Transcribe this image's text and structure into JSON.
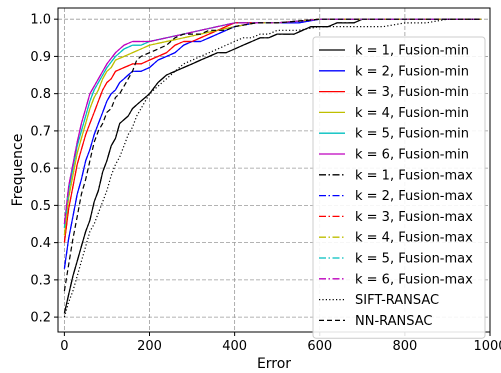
{
  "chart_data": {
    "type": "line",
    "title": "",
    "xlabel": "Error",
    "ylabel": "Frequence",
    "xlim": [
      -15,
      1000
    ],
    "ylim": [
      0.16,
      1.03
    ],
    "xticks": [
      0,
      200,
      400,
      600,
      800,
      1000
    ],
    "yticks": [
      0.2,
      0.3,
      0.4,
      0.5,
      0.6,
      0.7,
      0.8,
      0.9,
      1.0
    ],
    "xtick_labels": [
      "0",
      "200",
      "400",
      "600",
      "800",
      "1000"
    ],
    "ytick_labels": [
      "0.2",
      "0.3",
      "0.4",
      "0.5",
      "0.6",
      "0.7",
      "0.8",
      "0.9",
      "1.0"
    ],
    "grid": true,
    "grid_style": "dashed",
    "legend_position": "lower-right",
    "series": [
      {
        "name": "k = 1, Fusion-min",
        "color": "#000000",
        "dash": "solid",
        "x": [
          0,
          10,
          20,
          30,
          40,
          50,
          60,
          70,
          80,
          90,
          100,
          110,
          120,
          130,
          140,
          150,
          160,
          170,
          180,
          190,
          200,
          220,
          240,
          260,
          280,
          300,
          320,
          340,
          360,
          380,
          400,
          420,
          440,
          460,
          480,
          500,
          520,
          540,
          560,
          580,
          600,
          620,
          640,
          660,
          680,
          700,
          720,
          760,
          800,
          900,
          980
        ],
        "y": [
          0.21,
          0.26,
          0.31,
          0.35,
          0.39,
          0.43,
          0.46,
          0.51,
          0.54,
          0.59,
          0.62,
          0.66,
          0.68,
          0.72,
          0.73,
          0.74,
          0.76,
          0.77,
          0.78,
          0.79,
          0.8,
          0.83,
          0.85,
          0.86,
          0.87,
          0.88,
          0.89,
          0.9,
          0.91,
          0.91,
          0.92,
          0.93,
          0.94,
          0.95,
          0.95,
          0.96,
          0.96,
          0.96,
          0.97,
          0.98,
          0.98,
          0.98,
          0.99,
          0.99,
          0.99,
          1.0,
          1.0,
          1.0,
          1.0,
          1.0,
          1.0
        ]
      },
      {
        "name": "k = 2, Fusion-min",
        "color": "#0000ff",
        "dash": "solid",
        "x": [
          0,
          10,
          20,
          30,
          40,
          50,
          60,
          70,
          80,
          90,
          100,
          110,
          120,
          130,
          140,
          150,
          160,
          170,
          180,
          200,
          220,
          240,
          260,
          280,
          300,
          320,
          340,
          360,
          380,
          400,
          450,
          500,
          550,
          600,
          700,
          800,
          980
        ],
        "y": [
          0.33,
          0.41,
          0.47,
          0.53,
          0.57,
          0.62,
          0.65,
          0.69,
          0.72,
          0.75,
          0.78,
          0.8,
          0.81,
          0.83,
          0.84,
          0.85,
          0.86,
          0.86,
          0.86,
          0.87,
          0.89,
          0.9,
          0.91,
          0.93,
          0.94,
          0.94,
          0.95,
          0.96,
          0.97,
          0.98,
          0.99,
          0.99,
          0.99,
          1.0,
          1.0,
          1.0,
          1.0
        ]
      },
      {
        "name": "k = 3, Fusion-min",
        "color": "#ff0000",
        "dash": "solid",
        "x": [
          0,
          10,
          20,
          30,
          40,
          50,
          60,
          70,
          80,
          90,
          100,
          110,
          120,
          140,
          160,
          180,
          200,
          220,
          240,
          260,
          280,
          300,
          320,
          340,
          360,
          380,
          400,
          450,
          500,
          600,
          700,
          800,
          980
        ],
        "y": [
          0.4,
          0.49,
          0.55,
          0.61,
          0.65,
          0.69,
          0.72,
          0.75,
          0.78,
          0.81,
          0.83,
          0.84,
          0.86,
          0.87,
          0.88,
          0.88,
          0.89,
          0.9,
          0.91,
          0.93,
          0.94,
          0.94,
          0.95,
          0.96,
          0.97,
          0.98,
          0.99,
          0.99,
          0.99,
          1.0,
          1.0,
          1.0,
          1.0
        ]
      },
      {
        "name": "k = 4, Fusion-min",
        "color": "#bfbf00",
        "dash": "solid",
        "x": [
          0,
          10,
          20,
          30,
          40,
          50,
          60,
          70,
          80,
          90,
          100,
          110,
          120,
          140,
          160,
          180,
          200,
          240,
          280,
          320,
          360,
          400,
          450,
          500,
          600,
          800,
          980
        ],
        "y": [
          0.42,
          0.52,
          0.58,
          0.64,
          0.68,
          0.72,
          0.76,
          0.79,
          0.81,
          0.84,
          0.86,
          0.87,
          0.89,
          0.9,
          0.91,
          0.92,
          0.93,
          0.94,
          0.95,
          0.96,
          0.97,
          0.98,
          0.99,
          0.99,
          1.0,
          1.0,
          1.0
        ]
      },
      {
        "name": "k = 5, Fusion-min",
        "color": "#00bfbf",
        "dash": "solid",
        "x": [
          0,
          10,
          20,
          30,
          40,
          50,
          60,
          70,
          80,
          90,
          100,
          120,
          140,
          160,
          180,
          200,
          240,
          280,
          320,
          360,
          400,
          450,
          500,
          600,
          800,
          980
        ],
        "y": [
          0.44,
          0.54,
          0.6,
          0.66,
          0.7,
          0.74,
          0.78,
          0.81,
          0.83,
          0.85,
          0.87,
          0.9,
          0.92,
          0.93,
          0.93,
          0.94,
          0.95,
          0.96,
          0.97,
          0.98,
          0.99,
          0.99,
          0.99,
          1.0,
          1.0,
          1.0
        ]
      },
      {
        "name": "k = 6, Fusion-min",
        "color": "#bf00bf",
        "dash": "solid",
        "x": [
          0,
          10,
          20,
          30,
          40,
          50,
          60,
          70,
          80,
          90,
          100,
          120,
          140,
          160,
          180,
          200,
          240,
          280,
          320,
          360,
          400,
          450,
          500,
          600,
          800,
          980
        ],
        "y": [
          0.45,
          0.55,
          0.61,
          0.67,
          0.72,
          0.76,
          0.8,
          0.82,
          0.84,
          0.86,
          0.88,
          0.91,
          0.93,
          0.94,
          0.94,
          0.94,
          0.95,
          0.96,
          0.97,
          0.98,
          0.99,
          0.99,
          0.99,
          1.0,
          1.0,
          1.0
        ]
      },
      {
        "name": "k = 1, Fusion-max",
        "color": "#000000",
        "dash": "dashdot",
        "x": [
          0,
          10,
          20,
          30,
          40,
          50,
          60,
          70,
          80,
          90,
          100,
          110,
          120,
          130,
          140,
          150,
          160,
          170,
          180,
          190,
          200,
          220,
          240,
          260,
          280,
          300,
          320,
          340,
          360,
          380,
          400,
          420,
          440,
          460,
          480,
          500,
          520,
          540,
          560,
          580,
          600,
          620,
          640,
          660,
          680,
          700,
          720,
          760,
          800,
          900,
          980
        ],
        "y": [
          0.21,
          0.26,
          0.31,
          0.35,
          0.39,
          0.43,
          0.46,
          0.51,
          0.54,
          0.59,
          0.62,
          0.66,
          0.68,
          0.72,
          0.73,
          0.74,
          0.76,
          0.77,
          0.78,
          0.79,
          0.8,
          0.83,
          0.85,
          0.86,
          0.87,
          0.88,
          0.89,
          0.9,
          0.91,
          0.91,
          0.92,
          0.93,
          0.94,
          0.95,
          0.95,
          0.96,
          0.96,
          0.96,
          0.97,
          0.98,
          0.98,
          0.98,
          0.99,
          0.99,
          0.99,
          1.0,
          1.0,
          1.0,
          1.0,
          1.0,
          1.0
        ]
      },
      {
        "name": "k = 2, Fusion-max",
        "color": "#0000ff",
        "dash": "dashdot",
        "x": [
          0,
          10,
          20,
          30,
          40,
          50,
          60,
          70,
          80,
          90,
          100,
          110,
          120,
          130,
          140,
          150,
          160,
          170,
          180,
          200,
          220,
          240,
          260,
          280,
          300,
          320,
          340,
          360,
          380,
          400,
          450,
          500,
          550,
          600,
          700,
          800,
          980
        ],
        "y": [
          0.33,
          0.41,
          0.47,
          0.53,
          0.57,
          0.62,
          0.65,
          0.69,
          0.72,
          0.75,
          0.78,
          0.8,
          0.81,
          0.83,
          0.84,
          0.85,
          0.86,
          0.86,
          0.86,
          0.87,
          0.89,
          0.9,
          0.91,
          0.93,
          0.94,
          0.94,
          0.95,
          0.96,
          0.97,
          0.98,
          0.99,
          0.99,
          0.99,
          1.0,
          1.0,
          1.0,
          1.0
        ]
      },
      {
        "name": "k = 3, Fusion-max",
        "color": "#ff0000",
        "dash": "dashdot",
        "x": [
          0,
          10,
          20,
          30,
          40,
          50,
          60,
          70,
          80,
          90,
          100,
          110,
          120,
          140,
          160,
          180,
          200,
          220,
          240,
          260,
          280,
          300,
          320,
          340,
          360,
          380,
          400,
          450,
          500,
          600,
          700,
          800,
          980
        ],
        "y": [
          0.4,
          0.49,
          0.55,
          0.61,
          0.65,
          0.69,
          0.72,
          0.75,
          0.78,
          0.81,
          0.83,
          0.84,
          0.86,
          0.87,
          0.88,
          0.88,
          0.89,
          0.9,
          0.91,
          0.93,
          0.94,
          0.94,
          0.95,
          0.96,
          0.97,
          0.98,
          0.99,
          0.99,
          0.99,
          1.0,
          1.0,
          1.0,
          1.0
        ]
      },
      {
        "name": "k = 4, Fusion-max",
        "color": "#bfbf00",
        "dash": "dashdot",
        "x": [
          0,
          10,
          20,
          30,
          40,
          50,
          60,
          70,
          80,
          90,
          100,
          110,
          120,
          140,
          160,
          180,
          200,
          240,
          280,
          320,
          360,
          400,
          450,
          500,
          600,
          800,
          980
        ],
        "y": [
          0.42,
          0.52,
          0.58,
          0.64,
          0.68,
          0.72,
          0.76,
          0.79,
          0.81,
          0.84,
          0.86,
          0.87,
          0.89,
          0.9,
          0.91,
          0.92,
          0.93,
          0.94,
          0.95,
          0.96,
          0.97,
          0.98,
          0.99,
          0.99,
          1.0,
          1.0,
          1.0
        ]
      },
      {
        "name": "k = 5, Fusion-max",
        "color": "#00bfbf",
        "dash": "dashdot",
        "x": [
          0,
          10,
          20,
          30,
          40,
          50,
          60,
          70,
          80,
          90,
          100,
          120,
          140,
          160,
          180,
          200,
          240,
          280,
          320,
          360,
          400,
          450,
          500,
          600,
          800,
          980
        ],
        "y": [
          0.44,
          0.54,
          0.6,
          0.66,
          0.7,
          0.74,
          0.78,
          0.81,
          0.83,
          0.85,
          0.87,
          0.9,
          0.92,
          0.93,
          0.93,
          0.94,
          0.95,
          0.96,
          0.97,
          0.98,
          0.99,
          0.99,
          0.99,
          1.0,
          1.0,
          1.0
        ]
      },
      {
        "name": "k = 6, Fusion-max",
        "color": "#bf00bf",
        "dash": "dashdot",
        "x": [
          0,
          10,
          20,
          30,
          40,
          50,
          60,
          70,
          80,
          90,
          100,
          120,
          140,
          160,
          180,
          200,
          240,
          280,
          320,
          360,
          400,
          450,
          500,
          600,
          800,
          980
        ],
        "y": [
          0.45,
          0.55,
          0.61,
          0.67,
          0.72,
          0.76,
          0.8,
          0.82,
          0.84,
          0.86,
          0.88,
          0.91,
          0.93,
          0.94,
          0.94,
          0.94,
          0.95,
          0.96,
          0.97,
          0.98,
          0.99,
          0.99,
          0.99,
          1.0,
          1.0,
          1.0
        ]
      },
      {
        "name": "SIFT-RANSAC",
        "color": "#000000",
        "dash": "dotted",
        "x": [
          0,
          10,
          20,
          30,
          40,
          50,
          60,
          70,
          80,
          90,
          100,
          110,
          120,
          130,
          140,
          150,
          160,
          170,
          180,
          190,
          200,
          220,
          240,
          260,
          280,
          300,
          320,
          340,
          360,
          380,
          400,
          420,
          440,
          460,
          480,
          500,
          550,
          600,
          650,
          700,
          750,
          800,
          850,
          900,
          980
        ],
        "y": [
          0.2,
          0.24,
          0.27,
          0.31,
          0.35,
          0.39,
          0.43,
          0.45,
          0.48,
          0.51,
          0.54,
          0.58,
          0.61,
          0.63,
          0.66,
          0.69,
          0.71,
          0.74,
          0.76,
          0.78,
          0.8,
          0.82,
          0.84,
          0.86,
          0.88,
          0.89,
          0.9,
          0.91,
          0.92,
          0.93,
          0.94,
          0.95,
          0.95,
          0.96,
          0.96,
          0.97,
          0.97,
          0.98,
          0.98,
          0.98,
          0.98,
          0.99,
          0.99,
          1.0,
          1.0
        ]
      },
      {
        "name": "NN-RANSAC",
        "color": "#000000",
        "dash": "dashed",
        "x": [
          0,
          10,
          20,
          30,
          40,
          50,
          60,
          70,
          80,
          90,
          100,
          110,
          120,
          130,
          140,
          150,
          160,
          170,
          180,
          200,
          220,
          240,
          260,
          280,
          300,
          320,
          340,
          360,
          380,
          400,
          450,
          500,
          600,
          980
        ],
        "y": [
          0.27,
          0.34,
          0.41,
          0.47,
          0.53,
          0.57,
          0.62,
          0.67,
          0.7,
          0.72,
          0.75,
          0.76,
          0.79,
          0.8,
          0.82,
          0.84,
          0.86,
          0.89,
          0.9,
          0.91,
          0.92,
          0.93,
          0.95,
          0.96,
          0.96,
          0.96,
          0.97,
          0.97,
          0.97,
          0.98,
          0.99,
          0.99,
          1.0,
          1.0
        ]
      }
    ]
  }
}
